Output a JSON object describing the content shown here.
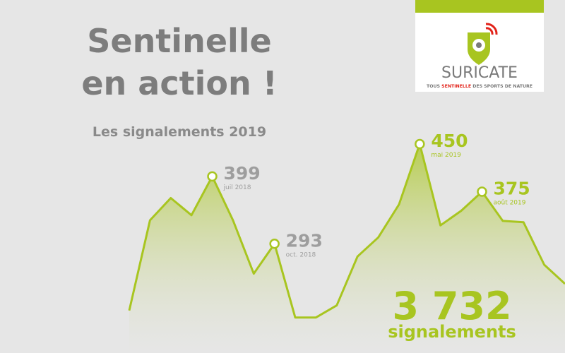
{
  "chart_data": {
    "type": "area",
    "title": [
      "Sentinelle",
      "en action !"
    ],
    "subtitle": "Les signalements 2019",
    "categories": [
      null,
      null,
      null,
      null,
      "juil 2018",
      null,
      null,
      "oct. 2018",
      null,
      null,
      null,
      null,
      null,
      null,
      "mai 2019",
      null,
      null,
      "août 2019",
      null,
      null,
      null,
      null
    ],
    "values": [
      188,
      330,
      365,
      338,
      399,
      330,
      246,
      293,
      177,
      177,
      196,
      273,
      303,
      355,
      450,
      322,
      345,
      375,
      329,
      327,
      260,
      230
    ],
    "color": "#a8c520",
    "past_color": "#9e9e9e",
    "total": "3 732",
    "total_label": "signalements",
    "logo": {
      "name": "SURICATE",
      "tagline": [
        "TOUS",
        "SENTINELLE",
        "DES SPORTS DE NATURE"
      ]
    }
  }
}
